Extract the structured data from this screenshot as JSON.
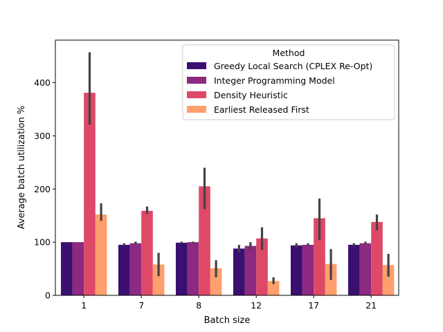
{
  "chart_data": {
    "type": "bar",
    "title": "",
    "xlabel": "Batch size",
    "ylabel": "Average batch utilization %",
    "categories": [
      "1",
      "7",
      "8",
      "12",
      "17",
      "21"
    ],
    "ylim": [
      0,
      480
    ],
    "yticks": [
      0,
      100,
      200,
      300,
      400
    ],
    "grid": false,
    "legend": {
      "title": "Method",
      "placement": "top-right"
    },
    "series": [
      {
        "name": "Greedy Local Search (CPLEX Re-Opt)",
        "color": "#3b0f70",
        "values": [
          100,
          95,
          99,
          88,
          94,
          95
        ],
        "errors": [
          [
            100,
            100
          ],
          [
            93,
            98
          ],
          [
            97,
            101
          ],
          [
            81,
            95
          ],
          [
            90,
            98
          ],
          [
            92,
            98
          ]
        ]
      },
      {
        "name": "Integer Programming Model",
        "color": "#8c2981",
        "values": [
          100,
          98,
          100,
          93,
          95,
          98
        ],
        "errors": [
          [
            100,
            100
          ],
          [
            96,
            101
          ],
          [
            98,
            101
          ],
          [
            86,
            100
          ],
          [
            94,
            98
          ],
          [
            96,
            101
          ]
        ]
      },
      {
        "name": "Density Heuristic",
        "color": "#de4968",
        "values": [
          381,
          159,
          205,
          107,
          145,
          138
        ],
        "errors": [
          [
            321,
            457
          ],
          [
            153,
            167
          ],
          [
            162,
            240
          ],
          [
            85,
            128
          ],
          [
            104,
            182
          ],
          [
            122,
            152
          ]
        ]
      },
      {
        "name": "Earliest Released First",
        "color": "#fe9f6d",
        "values": [
          152,
          58,
          51,
          27,
          59,
          57
        ],
        "errors": [
          [
            140,
            173
          ],
          [
            36,
            80
          ],
          [
            34,
            66
          ],
          [
            21,
            34
          ],
          [
            29,
            87
          ],
          [
            35,
            78
          ]
        ]
      }
    ]
  }
}
